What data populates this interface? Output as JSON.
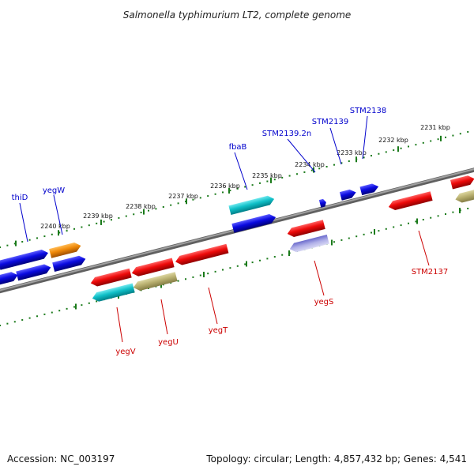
{
  "title": "Salmonella typhimurium LT2, complete genome",
  "footer": {
    "accession": "Accession: NC_003197",
    "topology": "Topology: circular; Length: 4,857,432 bp; Genes: 4,541"
  },
  "colors": {
    "backbone": "#808080",
    "ticks": "#1a7a1a",
    "forward_label": "#0000cc",
    "reverse_label": "#cc0000",
    "blue": "#0a0ae0",
    "red": "#ee0a0a",
    "orange": "#f08a0a",
    "cyan": "#10c0c8",
    "khaki": "#b9b070",
    "lavender": "#8080d0"
  },
  "tick_labels": [
    "2240 kbp",
    "2239 kbp",
    "2238 kbp",
    "2237 kbp",
    "2236 kbp",
    "2235 kbp",
    "2234 kbp",
    "2233 kbp",
    "2232 kbp",
    "2231 kbp"
  ],
  "forward_genes": [
    {
      "label": "thiD",
      "color": "blue"
    },
    {
      "label": "yegW",
      "color": "orange"
    },
    {
      "label": "fbaB",
      "color": "cyan"
    },
    {
      "label": "STM2139.2n",
      "color": "blue"
    },
    {
      "label": "STM2139",
      "color": "blue"
    },
    {
      "label": "STM2138",
      "color": "blue"
    }
  ],
  "reverse_genes": [
    {
      "label": "yegV",
      "color": "cyan"
    },
    {
      "label": "yegU",
      "color": "khaki"
    },
    {
      "label": "yegT",
      "color": "red"
    },
    {
      "label": "yegS",
      "color": "lavender"
    },
    {
      "label": "STM2137",
      "color": "red"
    }
  ]
}
